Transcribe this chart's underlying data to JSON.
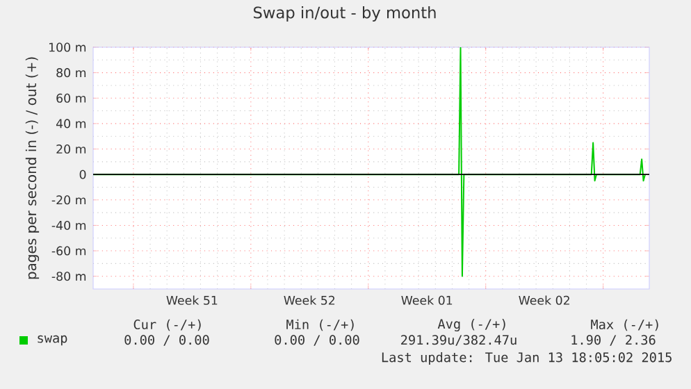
{
  "chart_data": {
    "type": "line",
    "title": "Swap in/out - by month",
    "ylabel": "pages per second in (-) / out (+)",
    "x": [
      "2014-12-11T14:24",
      "2015-01-02T09:36",
      "2015-01-02T12:00",
      "2015-01-02T14:24",
      "2015-01-02T16:48",
      "2015-01-10T07:12",
      "2015-01-10T09:36",
      "2015-01-10T12:00",
      "2015-01-10T14:24",
      "2015-01-13T04:48",
      "2015-01-13T07:12",
      "2015-01-13T09:36",
      "2015-01-13T12:00"
    ],
    "series": [
      {
        "name": "swap",
        "color": "#00cc00",
        "values": [
          0,
          0,
          100,
          -80,
          0,
          0,
          25,
          -5,
          0,
          0,
          12,
          -5,
          0
        ]
      }
    ],
    "xlim": [
      "2014-12-11T14:24",
      "2015-01-13T18:00"
    ],
    "ylim": [
      -90,
      100
    ],
    "xticks": [
      {
        "value": "2014-12-14",
        "label": null
      },
      {
        "value": "2014-12-21",
        "label": null
      },
      {
        "value": "2014-12-28",
        "label": null
      },
      {
        "value": "2015-01-04",
        "label": null
      },
      {
        "value": "2015-01-11",
        "label": null
      },
      {
        "value": "2014-12-17T12:00",
        "label": "Week 51"
      },
      {
        "value": "2014-12-24T12:00",
        "label": "Week 52"
      },
      {
        "value": "2014-12-31T12:00",
        "label": "Week 01"
      },
      {
        "value": "2015-01-07T12:00",
        "label": "Week 02"
      }
    ],
    "yticks": [
      {
        "value": -80,
        "label": "-80 m"
      },
      {
        "value": -60,
        "label": "-60 m"
      },
      {
        "value": -40,
        "label": "-40 m"
      },
      {
        "value": -20,
        "label": "-20 m"
      },
      0,
      {
        "value": 20,
        "label": "20 m"
      },
      {
        "value": 40,
        "label": "40 m"
      },
      {
        "value": 60,
        "label": "60 m"
      },
      {
        "value": 80,
        "label": "80 m"
      },
      {
        "value": 100,
        "label": "100 m"
      }
    ],
    "ref_lines": [
      {
        "axis": "y",
        "value": 0,
        "color": "#000000"
      }
    ],
    "grid": true,
    "legend": "bottom",
    "marker": "none",
    "line_style": "solid",
    "annotations": [
      "Cur (-/+)",
      "Min (-/+)",
      "Avg (-/+)",
      "Max (-/+)",
      "0.00 / 0.00",
      "0.00 / 0.00",
      "291.39u/382.47u",
      "1.90 / 2.36",
      "Last update: Tue Jan 13 18:05:02 2015"
    ]
  }
}
